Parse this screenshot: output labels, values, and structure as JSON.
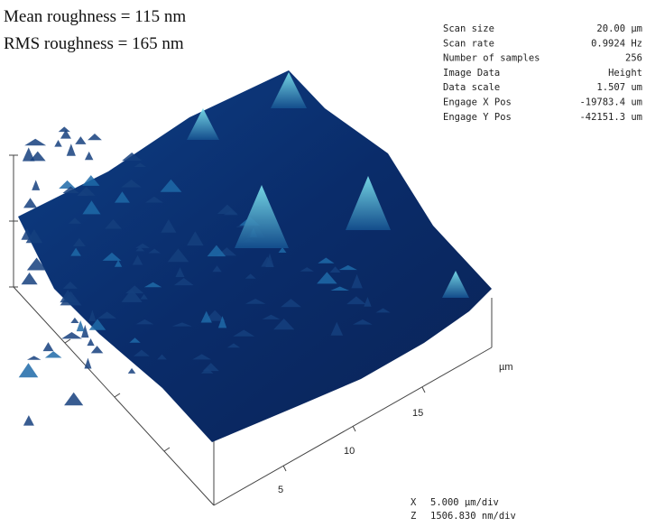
{
  "roughness": [
    "Mean roughness = 115 nm",
    "RMS roughness = 165 nm"
  ],
  "scan_params": [
    [
      "Scan size",
      "20.00 µm"
    ],
    [
      "Scan rate",
      "0.9924 Hz"
    ],
    [
      "Number of samples",
      "256"
    ],
    [
      "Image Data",
      "Height"
    ],
    [
      "Data scale",
      "1.507 um"
    ],
    [
      "Engage X Pos",
      "-19783.4 um"
    ],
    [
      "Engage Y Pos",
      "-42151.3 um"
    ]
  ],
  "axis": {
    "ticks": [
      "5",
      "10",
      "15"
    ],
    "unit": "µm"
  },
  "scale": [
    [
      "X",
      "5.000 µm/div"
    ],
    [
      "Z",
      "1506.830 nm/div"
    ]
  ]
}
